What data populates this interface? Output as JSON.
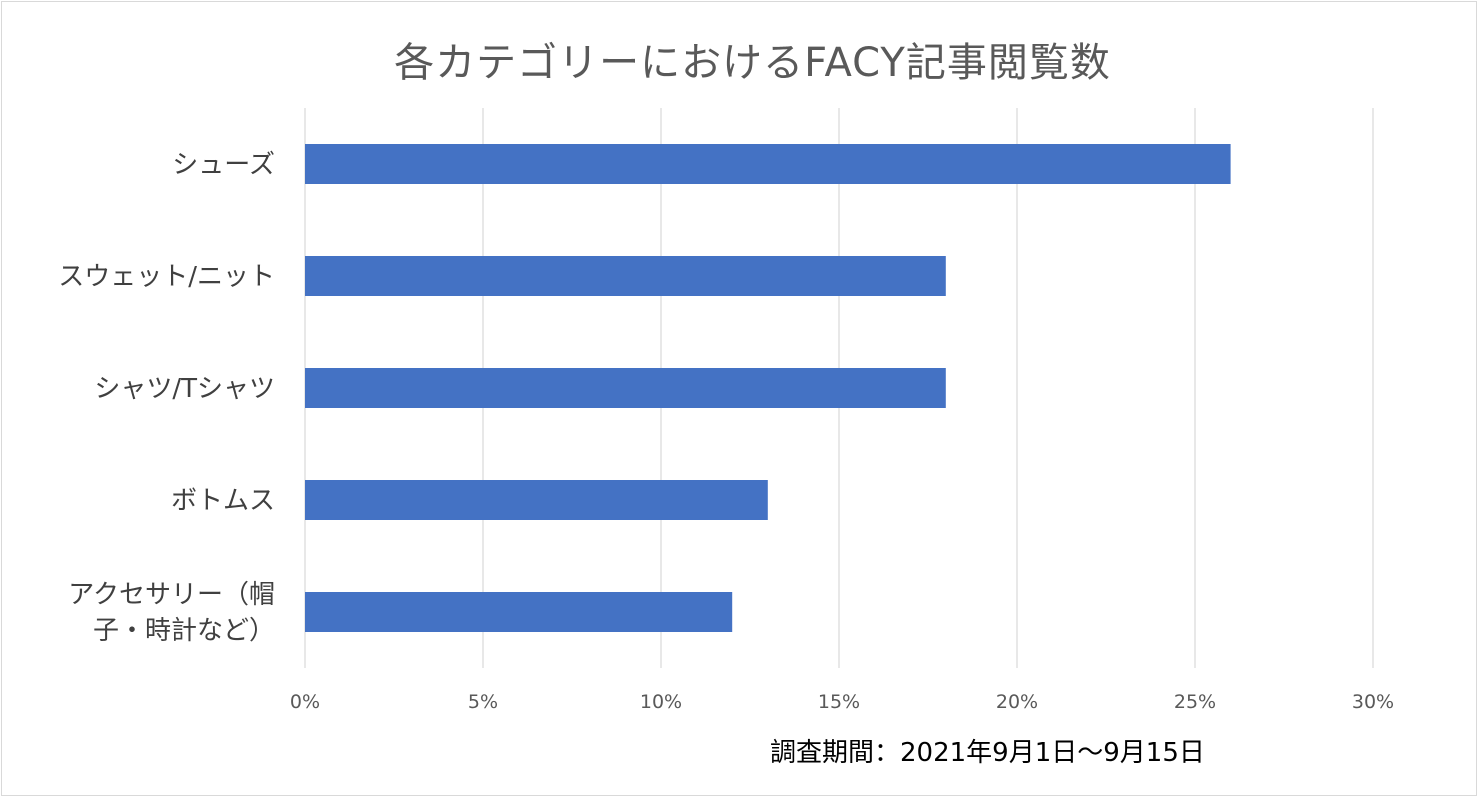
{
  "chart_data": {
    "type": "bar",
    "orientation": "horizontal",
    "title": "各カテゴリーにおけるFACY記事閲覧数",
    "categories": [
      "シューズ",
      "スウェット/ニット",
      "シャツ/Tシャツ",
      "ボトムス",
      "アクセサリー（帽子・時計など）"
    ],
    "category_lines": [
      [
        "シューズ"
      ],
      [
        "スウェット/ニット"
      ],
      [
        "シャツ/Tシャツ"
      ],
      [
        "ボトムス"
      ],
      [
        "アクセサリー（帽",
        "子・時計など）"
      ]
    ],
    "values": [
      0.26,
      0.18,
      0.18,
      0.13,
      0.12
    ],
    "xlim": [
      0,
      0.3
    ],
    "x_ticks": [
      0,
      0.05,
      0.1,
      0.15,
      0.2,
      0.25,
      0.3
    ],
    "x_tick_labels": [
      "0%",
      "5%",
      "10%",
      "15%",
      "20%",
      "25%",
      "30%"
    ],
    "xlabel": "",
    "ylabel": "",
    "grid": true,
    "legend": "none",
    "bar_color": "#4472c4",
    "grid_color": "#d9d9d9"
  },
  "footnote": "調査期間：2021年9月1日〜9月15日"
}
